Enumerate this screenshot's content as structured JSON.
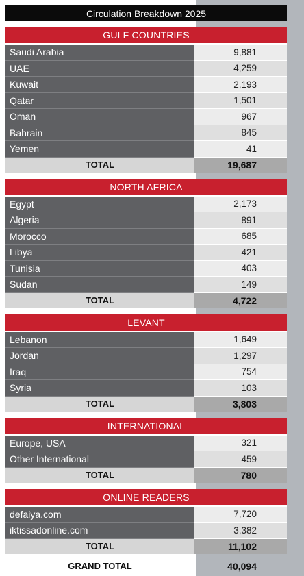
{
  "title": "Circulation Breakdown 2025",
  "total_label": "TOTAL",
  "grand_total": {
    "label": "GRAND TOTAL",
    "value": "40,094"
  },
  "sections": [
    {
      "name": "GULF COUNTRIES",
      "rows": [
        {
          "label": "Saudi Arabia",
          "value": "9,881"
        },
        {
          "label": "UAE",
          "value": "4,259"
        },
        {
          "label": "Kuwait",
          "value": "2,193"
        },
        {
          "label": "Qatar",
          "value": "1,501"
        },
        {
          "label": "Oman",
          "value": "967"
        },
        {
          "label": "Bahrain",
          "value": "845"
        },
        {
          "label": "Yemen",
          "value": "41"
        }
      ],
      "total": "19,687"
    },
    {
      "name": "NORTH AFRICA",
      "rows": [
        {
          "label": "Egypt",
          "value": "2,173"
        },
        {
          "label": "Algeria",
          "value": "891"
        },
        {
          "label": "Morocco",
          "value": "685"
        },
        {
          "label": "Libya",
          "value": "421"
        },
        {
          "label": "Tunisia",
          "value": "403"
        },
        {
          "label": "Sudan",
          "value": "149"
        }
      ],
      "total": "4,722"
    },
    {
      "name": "LEVANT",
      "rows": [
        {
          "label": "Lebanon",
          "value": "1,649"
        },
        {
          "label": "Jordan",
          "value": "1,297"
        },
        {
          "label": "Iraq",
          "value": "754"
        },
        {
          "label": "Syria",
          "value": "103"
        }
      ],
      "total": "3,803"
    },
    {
      "name": "INTERNATIONAL",
      "rows": [
        {
          "label": "Europe, USA",
          "value": "321"
        },
        {
          "label": "Other International",
          "value": "459"
        }
      ],
      "total": "780"
    },
    {
      "name": "ONLINE READERS",
      "rows": [
        {
          "label": "defaiya.com",
          "value": "7,720"
        },
        {
          "label": "iktissadonline.com",
          "value": "3,382"
        }
      ],
      "total": "11,102"
    }
  ]
}
